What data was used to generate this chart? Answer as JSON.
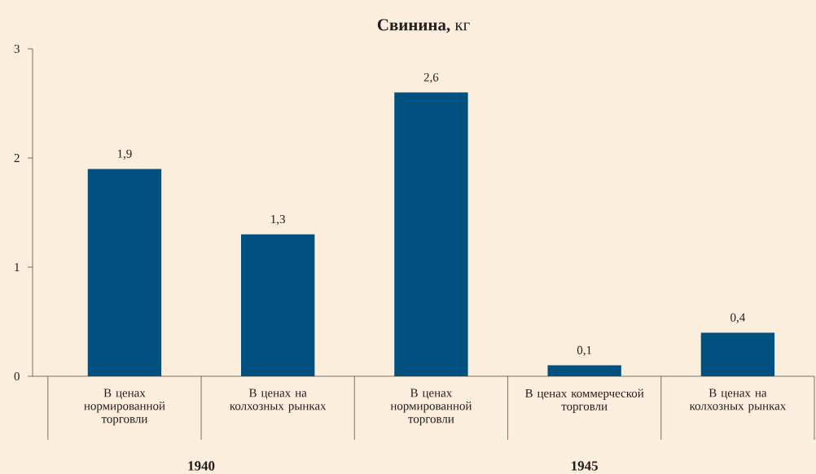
{
  "chart_data": {
    "type": "bar",
    "title": "**Свинина,** кг",
    "categories": [
      "В ценах нормированной торговли",
      "В ценах на колхозных рынках",
      "В ценах нормированной торговли",
      "В ценах коммерческой торговли",
      "В ценах на колхозных рынках"
    ],
    "values": [
      1.9,
      1.3,
      2.6,
      0.1,
      0.4
    ],
    "value_labels": [
      "1,9",
      "1,3",
      "2,6",
      "0,1",
      "0,4"
    ],
    "color": "#00517f",
    "ylim": [
      0,
      3
    ],
    "yticks": [
      0,
      1,
      2,
      3
    ],
    "annotations": [
      "1940",
      "1945"
    ]
  }
}
